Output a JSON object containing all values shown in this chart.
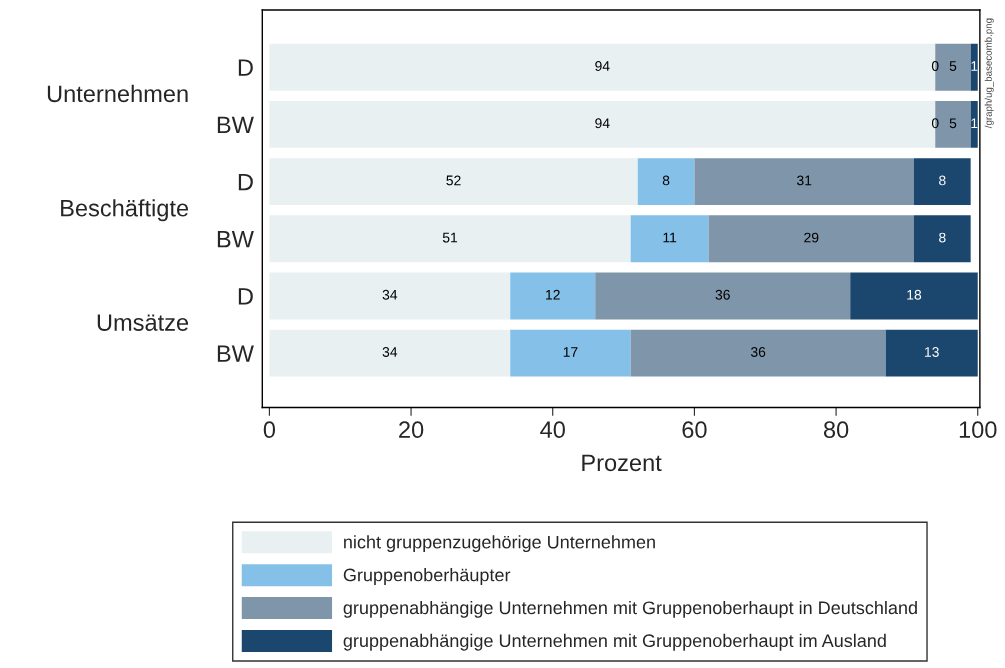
{
  "chart_data": {
    "type": "bar",
    "orientation": "horizontal",
    "stacked": true,
    "data_labels": true,
    "categories": [
      "D",
      "BW",
      "D",
      "BW",
      "D",
      "BW"
    ],
    "series": [
      {
        "name": "nicht gruppenzugehörige Unternehmen",
        "color": "#e8f0f2",
        "values": [
          94,
          94,
          52,
          51,
          34,
          34
        ]
      },
      {
        "name": "Gruppenoberhäupter",
        "color": "#85c0e9",
        "values": [
          0,
          0,
          8,
          11,
          12,
          17
        ]
      },
      {
        "name": "gruppenabhängige Unternehmen mit Gruppenoberhaupt in Deutschland",
        "color": "#7f95aa",
        "values": [
          5,
          5,
          31,
          29,
          36,
          36
        ]
      },
      {
        "name": "gruppenabhängige Unternehmen mit Gruppenoberhaupt im Ausland",
        "color": "#1b466d",
        "values": [
          1,
          1,
          8,
          8,
          18,
          13
        ]
      }
    ],
    "xlabel": "Prozent",
    "xlim": [
      -1,
      100.3
    ],
    "xticks": [
      0,
      20,
      40,
      60,
      80,
      100
    ],
    "grid": false,
    "legend": "bottom",
    "annotations": [
      "Unternehmen",
      "Beschäftigte",
      "Umsätze",
      "/graph/ug_basecomb.png"
    ]
  }
}
